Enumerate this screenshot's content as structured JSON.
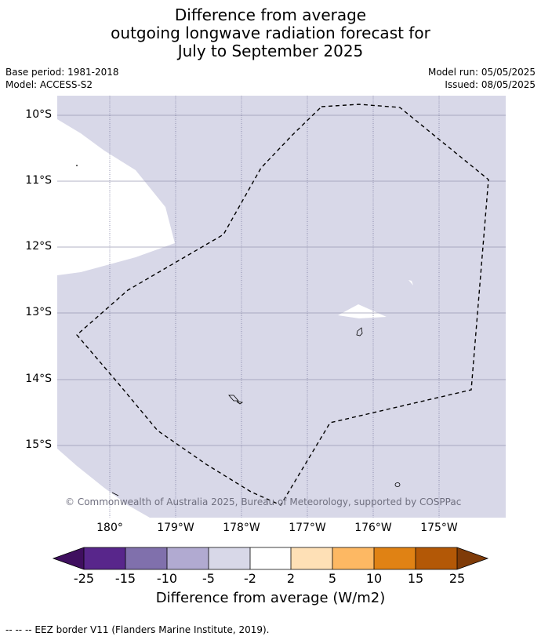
{
  "header": {
    "title_line1": "Difference from average",
    "title_line2": "outgoing longwave radiation forecast for",
    "title_line3": "July to September 2025"
  },
  "meta": {
    "base_period": "Base period: 1981-2018",
    "model": "Model: ACCESS-S2",
    "model_run": "Model run: 05/05/2025",
    "issued": "Issued: 08/05/2025"
  },
  "map": {
    "latitude_labels": [
      "10°S",
      "11°S",
      "12°S",
      "13°S",
      "14°S",
      "15°S"
    ],
    "longitude_labels": [
      "180°",
      "179°W",
      "178°W",
      "177°W",
      "176°W",
      "175°W"
    ],
    "copyright": "© Commonwealth of Australia 2025, Bureau of Meteorology, supported by COSPPac",
    "fill_colors": {
      "background_category": "#d8d8e8",
      "near_zero_category": "#ffffff"
    }
  },
  "colorbar": {
    "title": "Difference from average (W/m2)",
    "ticks": [
      "-25",
      "-15",
      "-10",
      "-5",
      "-2",
      "2",
      "5",
      "10",
      "15",
      "25"
    ],
    "colors": [
      "#3f0f5f",
      "#58268b",
      "#8070ac",
      "#b1aad1",
      "#d8d8e8",
      "#ffffff",
      "#fee0b6",
      "#fdb863",
      "#e08214",
      "#b35806",
      "#7f3b08"
    ]
  },
  "footnote": "--  --  -- EEZ border V11 (Flanders Marine Institute, 2019)."
}
